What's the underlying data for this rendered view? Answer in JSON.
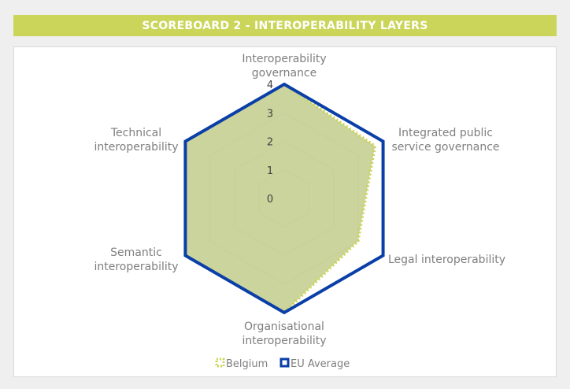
{
  "header": {
    "title": "SCOREBOARD 2 - INTEROPERABILITY LAYERS",
    "background": "#cad55a",
    "text_color": "#ffffff"
  },
  "chart_data": {
    "type": "radar",
    "title": "",
    "axes": [
      [
        "Interoperability",
        "governance"
      ],
      [
        "Integrated public",
        "service governance"
      ],
      [
        "Legal interoperability"
      ],
      [
        "Organisational",
        "interoperability"
      ],
      [
        "Semantic",
        "interoperability"
      ],
      [
        "Technical",
        "interoperability"
      ]
    ],
    "rlim": [
      0,
      4
    ],
    "ticks": [
      "0",
      "1",
      "2",
      "3",
      "4"
    ],
    "grid": true,
    "legend_position": "bottom",
    "series": [
      {
        "name": "Belgium",
        "values": [
          4,
          3.67,
          2.98,
          4,
          4,
          4
        ],
        "color": "#cad55a",
        "fill": "#c3cd8c",
        "style": "dotted"
      },
      {
        "name": "EU Average",
        "values": [
          4,
          4,
          4,
          4,
          4,
          4
        ],
        "color": "#0a3fa8",
        "style": "solid"
      }
    ]
  }
}
